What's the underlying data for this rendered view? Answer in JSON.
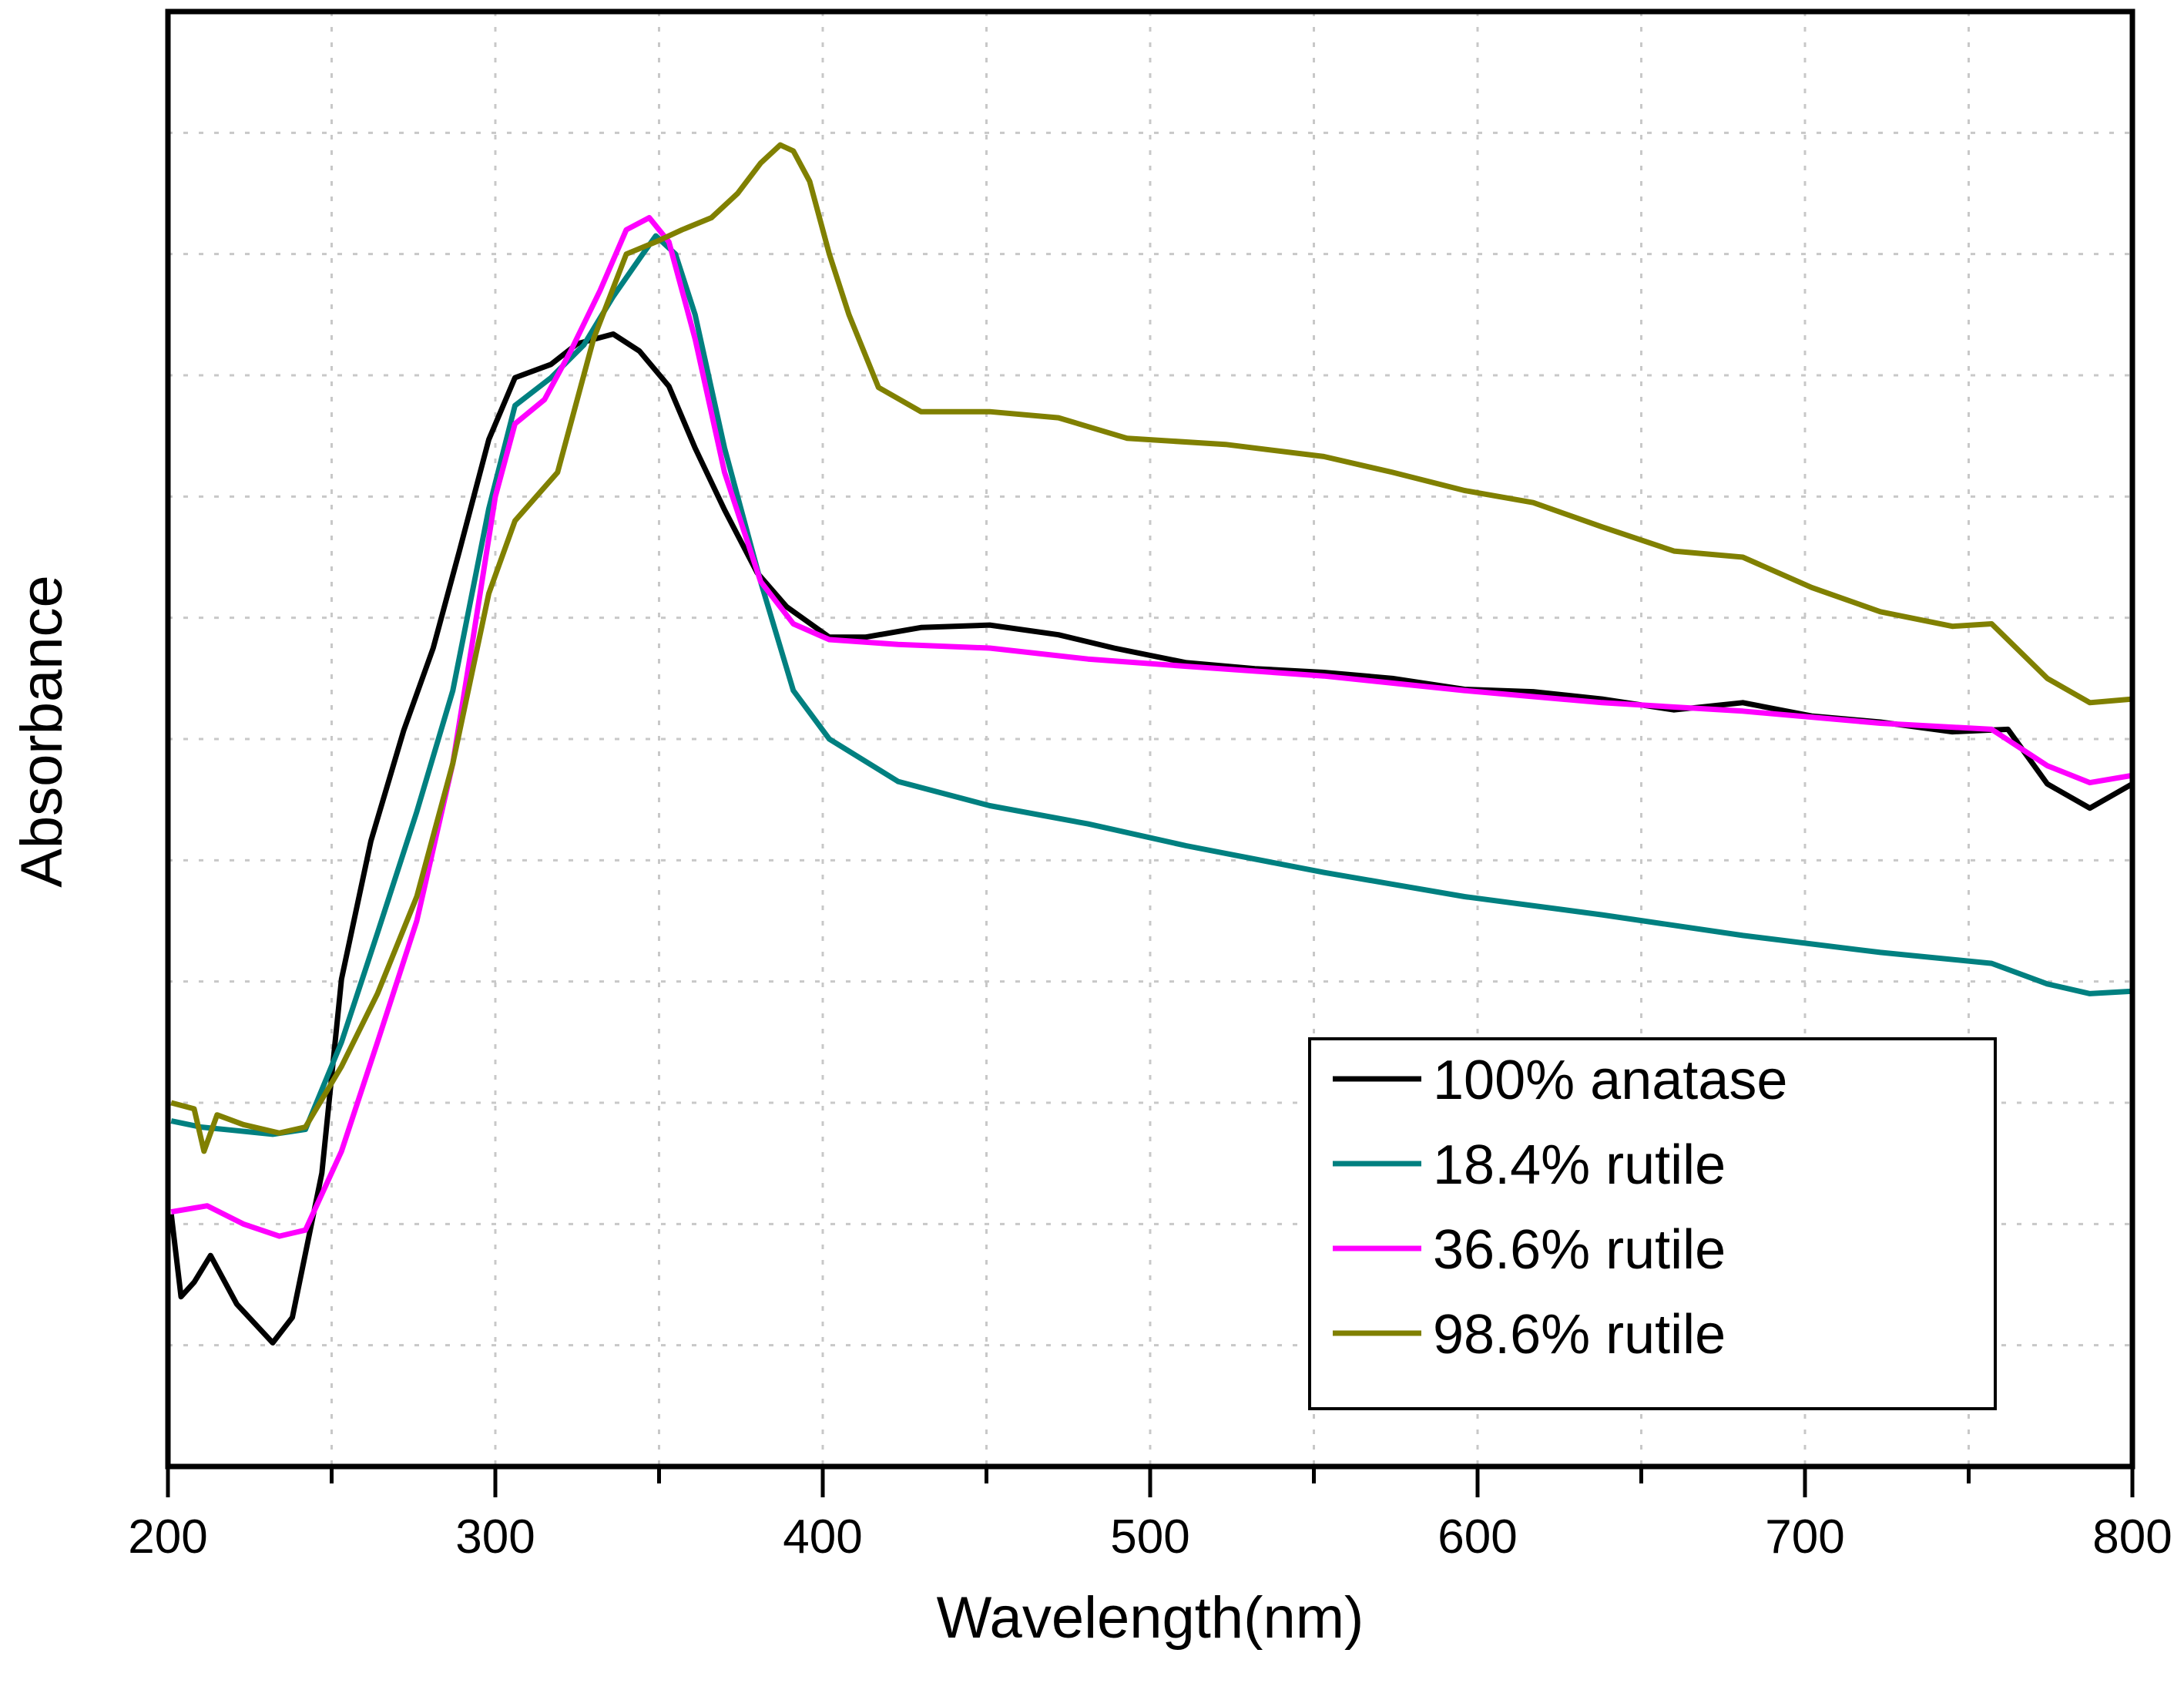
{
  "chart_data": {
    "type": "line",
    "title": "",
    "xlabel": "Wavelength(nm)",
    "ylabel": "Absorbance",
    "xlim": [
      200,
      800
    ],
    "ylim": [
      0,
      12
    ],
    "y_units": "arbitrary (no tick labels shown)",
    "grid": true,
    "x_ticks": [
      200,
      300,
      400,
      500,
      600,
      700,
      800
    ],
    "x_tick_labels": [
      "200",
      "300",
      "400",
      "500",
      "600",
      "700",
      "800"
    ],
    "y_gridlines": [
      1,
      2,
      3,
      4,
      5,
      6,
      7,
      8,
      9,
      10,
      11
    ],
    "legend_position": "bottom-right",
    "series": [
      {
        "name": "100% anatase",
        "color": "#000000",
        "x": [
          201,
          204,
          208,
          213,
          221,
          232,
          238,
          247,
          253,
          262,
          272,
          281,
          289,
          298,
          306,
          317,
          325,
          336,
          344,
          353,
          361,
          370,
          380,
          389,
          402,
          413,
          430,
          451,
          472,
          489,
          511,
          532,
          553,
          574,
          596,
          617,
          638,
          660,
          681,
          702,
          723,
          745,
          762,
          774,
          787,
          800
        ],
        "y": [
          2.08,
          1.4,
          1.52,
          1.74,
          1.34,
          1.02,
          1.23,
          2.42,
          4.02,
          5.16,
          6.07,
          6.75,
          7.55,
          8.47,
          8.98,
          9.09,
          9.26,
          9.34,
          9.2,
          8.91,
          8.4,
          7.89,
          7.37,
          7.09,
          6.84,
          6.84,
          6.92,
          6.94,
          6.86,
          6.75,
          6.63,
          6.58,
          6.55,
          6.5,
          6.41,
          6.39,
          6.33,
          6.24,
          6.3,
          6.19,
          6.14,
          6.06,
          6.08,
          5.63,
          5.43,
          5.63
        ]
      },
      {
        "name": "18.4% rutile",
        "color": "#008080",
        "x": [
          201,
          210,
          221,
          232,
          242,
          253,
          264,
          276,
          287,
          298,
          306,
          317,
          327,
          336,
          345,
          349,
          355,
          361,
          370,
          381,
          391,
          402,
          423,
          451,
          481,
          511,
          553,
          596,
          638,
          681,
          723,
          757,
          774,
          787,
          800
        ],
        "y": [
          2.85,
          2.8,
          2.77,
          2.74,
          2.78,
          3.5,
          4.4,
          5.4,
          6.4,
          7.9,
          8.75,
          8.98,
          9.25,
          9.65,
          10.0,
          10.15,
          10.0,
          9.5,
          8.4,
          7.3,
          6.4,
          6.0,
          5.65,
          5.45,
          5.3,
          5.12,
          4.9,
          4.7,
          4.55,
          4.38,
          4.24,
          4.15,
          3.98,
          3.9,
          3.92
        ]
      },
      {
        "name": "36.6% rutile",
        "color": "#ff00ff",
        "x": [
          201,
          212,
          223,
          234,
          242,
          253,
          264,
          276,
          287,
          293,
          300,
          306,
          315,
          323,
          332,
          340,
          347,
          353,
          361,
          370,
          381,
          391,
          402,
          423,
          451,
          481,
          511,
          553,
          596,
          638,
          681,
          723,
          757,
          774,
          787,
          800
        ],
        "y": [
          2.1,
          2.15,
          2.0,
          1.9,
          1.95,
          2.6,
          3.5,
          4.5,
          5.8,
          6.8,
          8.0,
          8.6,
          8.8,
          9.2,
          9.7,
          10.2,
          10.3,
          10.1,
          9.3,
          8.2,
          7.3,
          6.95,
          6.82,
          6.78,
          6.75,
          6.66,
          6.6,
          6.52,
          6.4,
          6.3,
          6.23,
          6.13,
          6.08,
          5.78,
          5.64,
          5.7
        ]
      },
      {
        "name": "98.6% rutile",
        "color": "#808000",
        "x": [
          201,
          208,
          211,
          215,
          223,
          234,
          242,
          253,
          264,
          276,
          287,
          298,
          306,
          319,
          330,
          340,
          349,
          357,
          366,
          374,
          381,
          387,
          391,
          396,
          402,
          408,
          417,
          430,
          451,
          472,
          493,
          523,
          553,
          574,
          596,
          617,
          638,
          660,
          681,
          702,
          723,
          745,
          757,
          774,
          787,
          800
        ],
        "y": [
          3.0,
          2.95,
          2.6,
          2.9,
          2.82,
          2.75,
          2.8,
          3.3,
          3.9,
          4.7,
          5.8,
          7.2,
          7.8,
          8.2,
          9.3,
          10.0,
          10.1,
          10.2,
          10.3,
          10.5,
          10.75,
          10.9,
          10.85,
          10.6,
          10.0,
          9.5,
          8.9,
          8.7,
          8.7,
          8.65,
          8.48,
          8.43,
          8.33,
          8.2,
          8.05,
          7.95,
          7.75,
          7.55,
          7.5,
          7.25,
          7.05,
          6.93,
          6.95,
          6.5,
          6.3,
          6.33
        ]
      }
    ]
  }
}
